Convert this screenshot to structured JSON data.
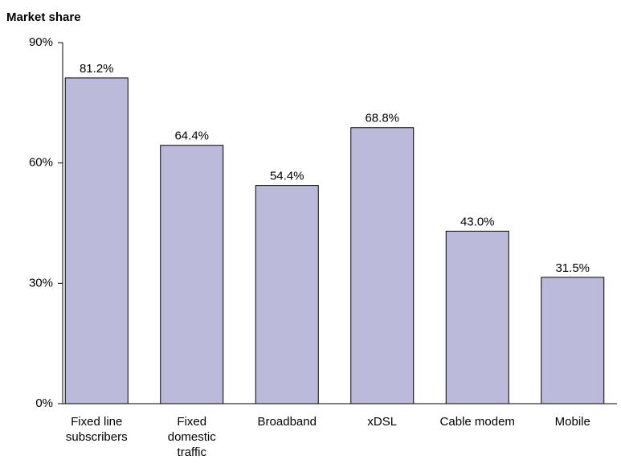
{
  "chart_data": {
    "type": "bar",
    "title": "Market share",
    "categories": [
      "Fixed line subscribers",
      "Fixed domestic traffic",
      "Broadband",
      "xDSL",
      "Cable modem",
      "Mobile"
    ],
    "values": [
      81.2,
      64.4,
      54.4,
      68.8,
      43.0,
      31.5
    ],
    "value_labels": [
      "81.2%",
      "64.4%",
      "54.4%",
      "68.8%",
      "43.0%",
      "31.5%"
    ],
    "color": "#bcbadb",
    "ylim": [
      0,
      90
    ],
    "yticks": [
      {
        "value": 0,
        "label": "0%"
      },
      {
        "value": 30,
        "label": "30%"
      },
      {
        "value": 60,
        "label": "60%"
      },
      {
        "value": 90,
        "label": "90%"
      }
    ],
    "grid": false
  }
}
